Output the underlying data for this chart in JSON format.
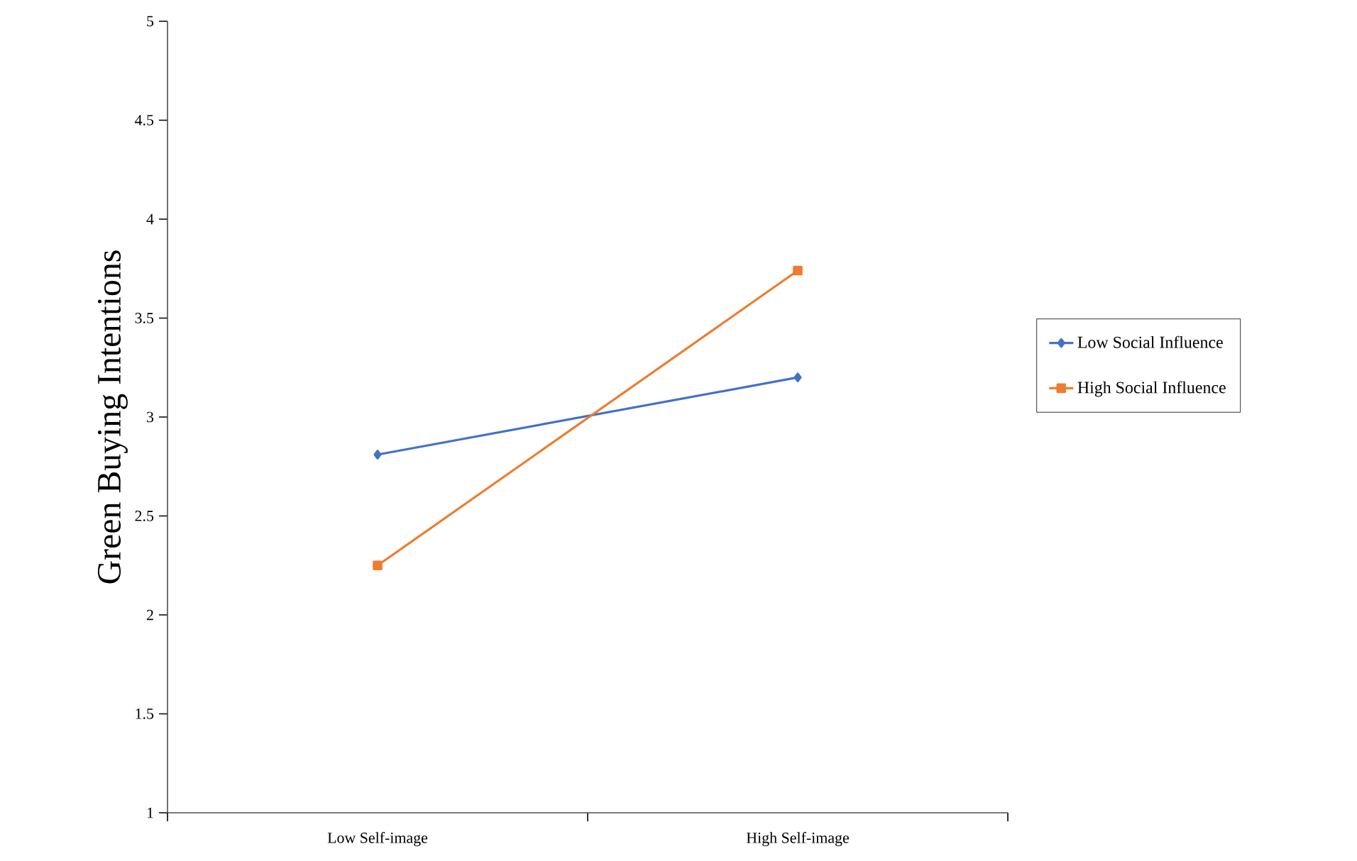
{
  "chart_data": {
    "type": "line",
    "ylabel": "Green Buying Intentions",
    "categories": [
      "Low Self-image",
      "High Self-image"
    ],
    "series": [
      {
        "name": "Low Social Influence",
        "color": "#4472c4",
        "marker": "diamond",
        "values": [
          2.81,
          3.2
        ]
      },
      {
        "name": "High Social Influence",
        "color": "#ed7d31",
        "marker": "square",
        "values": [
          2.25,
          3.74
        ]
      }
    ],
    "ylim": [
      1,
      5
    ],
    "yticks": [
      1,
      1.5,
      2,
      2.5,
      3,
      3.5,
      4,
      4.5,
      5
    ],
    "grid": false,
    "legend": "right"
  }
}
